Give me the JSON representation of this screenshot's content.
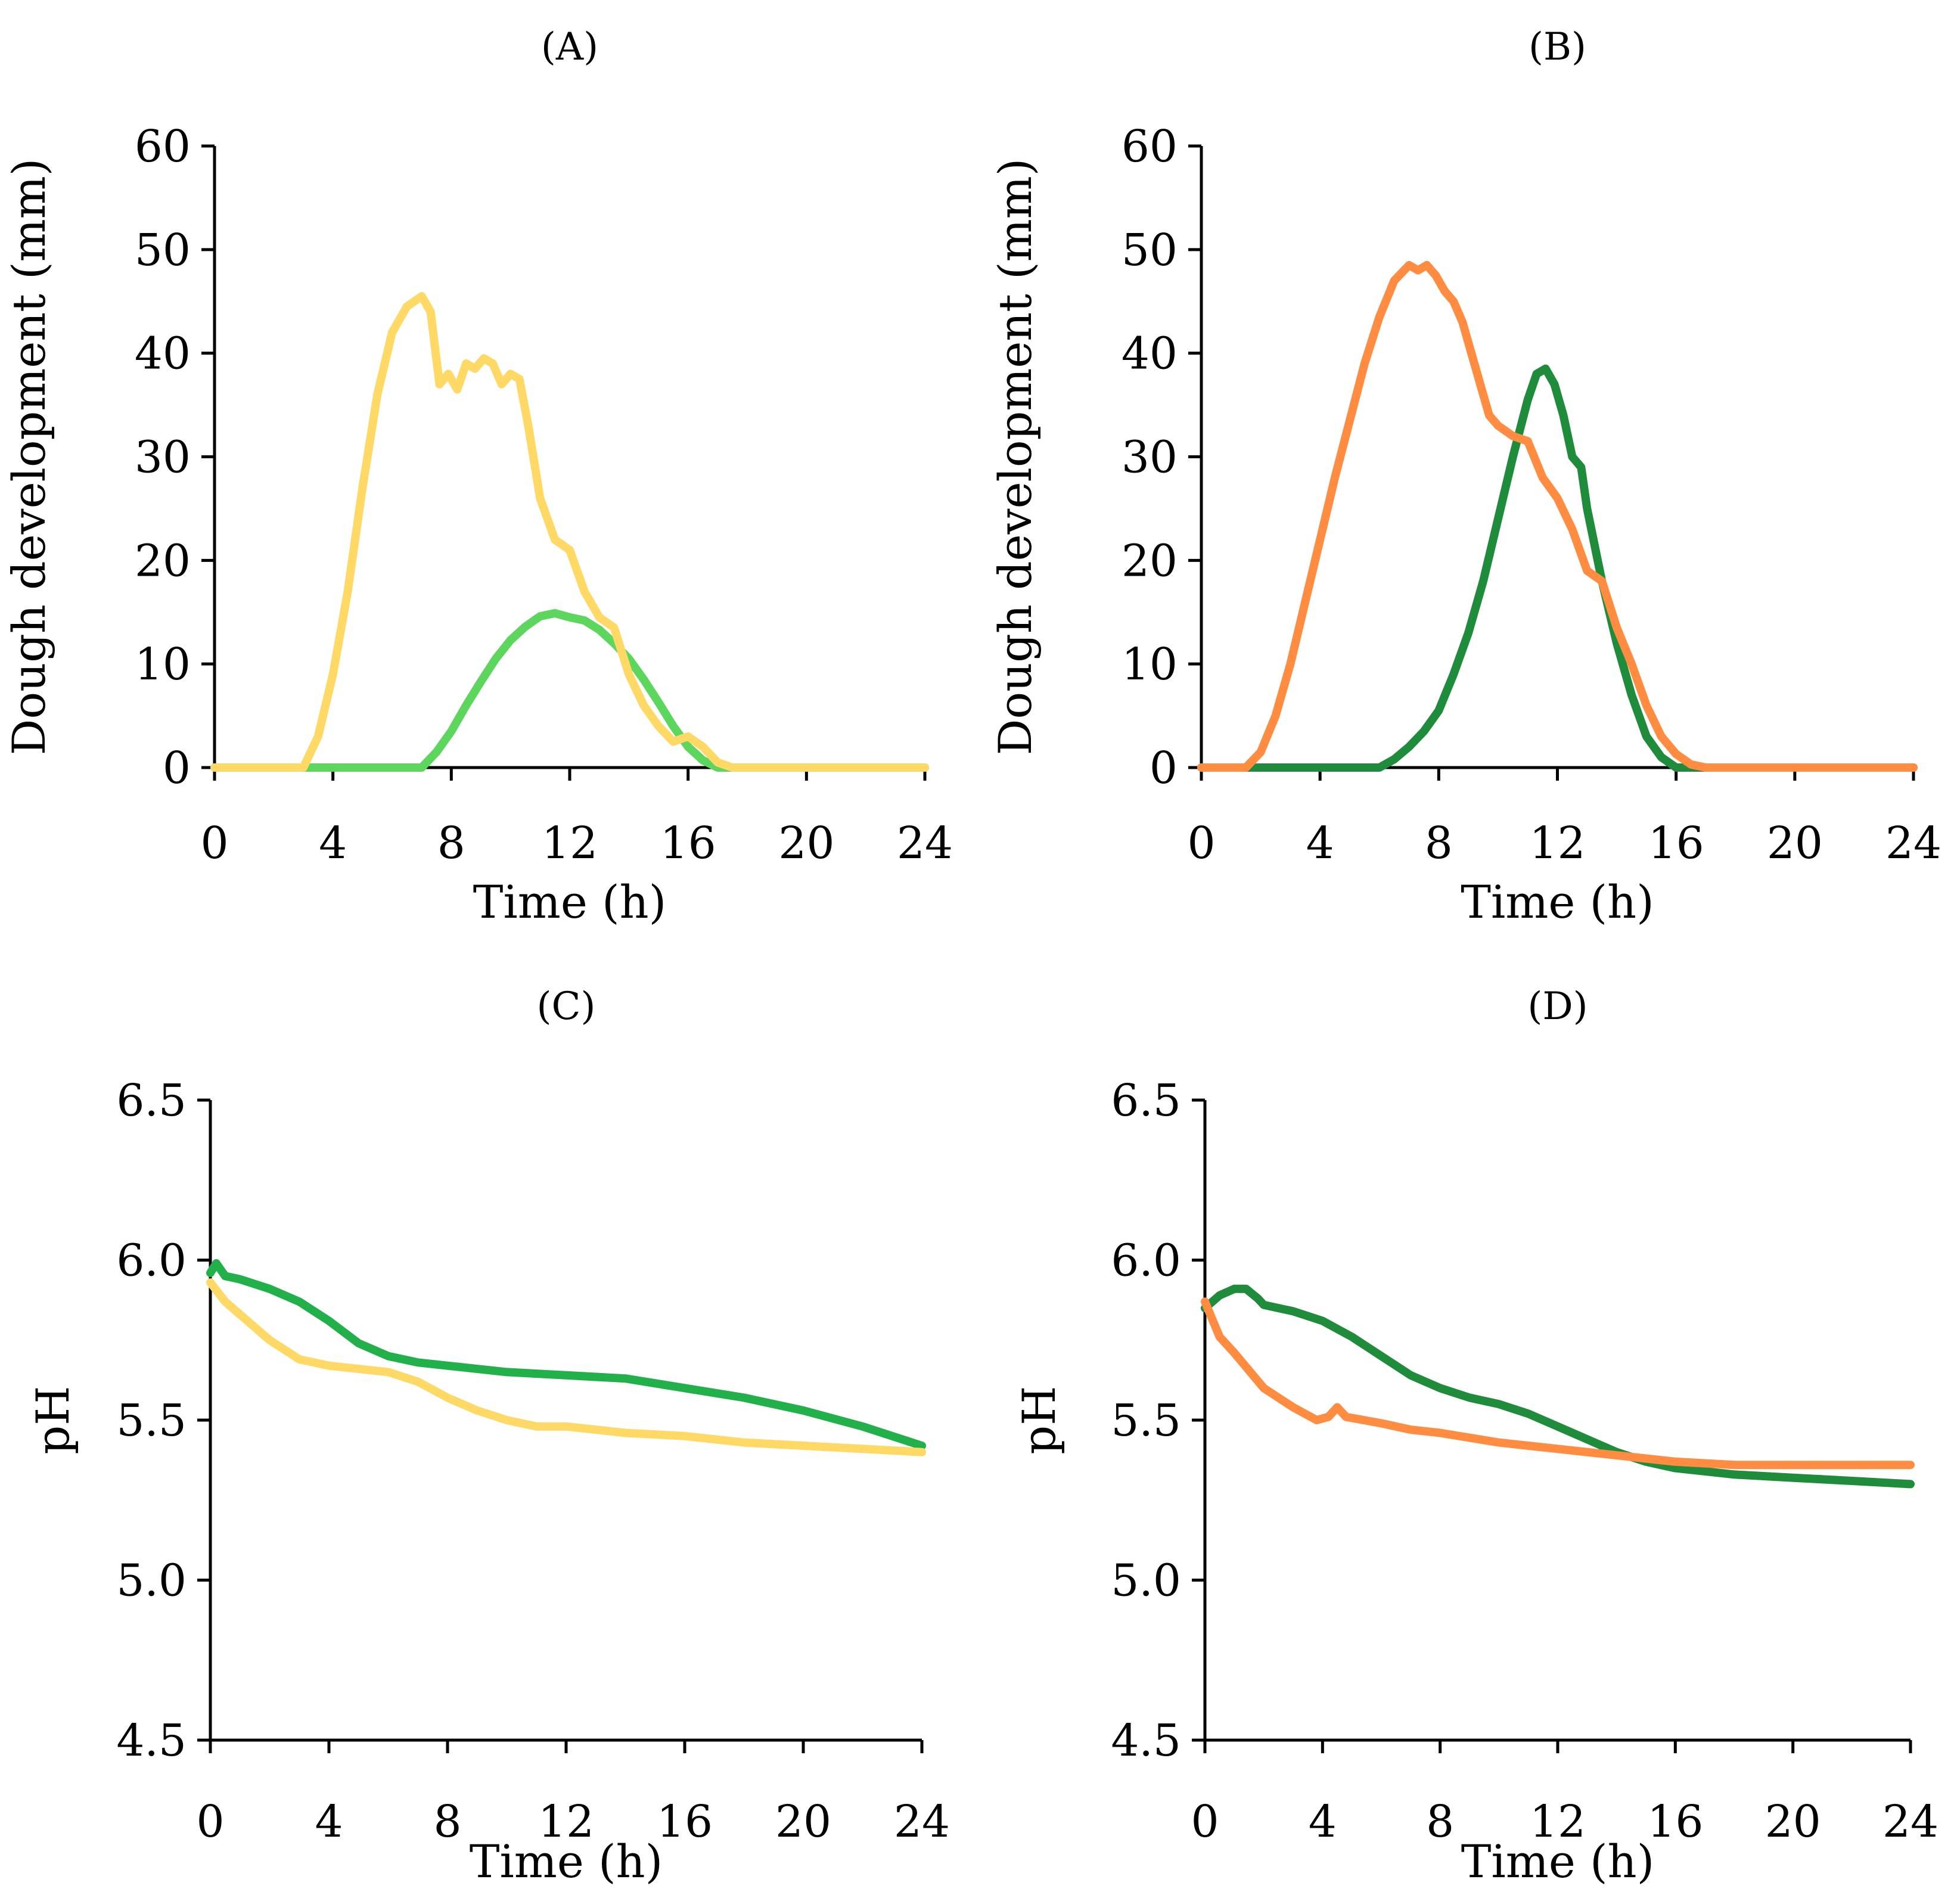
{
  "chart_data": [
    {
      "panel": "A",
      "type": "line",
      "title": "(A)",
      "xlabel": "Time (h)",
      "ylabel": "Dough development (mm)",
      "xlim": [
        0,
        24
      ],
      "ylim": [
        0,
        60
      ],
      "xticks": [
        "0",
        "4",
        "8",
        "12",
        "16",
        "20",
        "24"
      ],
      "yticks": [
        "0",
        "10",
        "20",
        "30",
        "40",
        "50",
        "60"
      ],
      "series": [
        {
          "name": "light-green",
          "color": "#5cd65c",
          "x": [
            0,
            7,
            7.5,
            8,
            8.5,
            9,
            9.5,
            10,
            10.5,
            11,
            11.5,
            12,
            12.5,
            13,
            13.5,
            14,
            14.5,
            15,
            15.5,
            16,
            16.5,
            17,
            24
          ],
          "y": [
            0,
            0,
            1.5,
            3.5,
            6,
            8.3,
            10.5,
            12.3,
            13.6,
            14.6,
            14.9,
            14.5,
            14.2,
            13.3,
            12,
            10.5,
            8.5,
            6.3,
            4,
            2,
            0.7,
            0,
            0
          ]
        },
        {
          "name": "yellow",
          "color": "#ffd966",
          "x": [
            0,
            3,
            3.5,
            4,
            4.5,
            5,
            5.5,
            6,
            6.5,
            7,
            7.3,
            7.6,
            7.9,
            8.2,
            8.5,
            8.8,
            9.1,
            9.4,
            9.7,
            10,
            10.3,
            10.6,
            11,
            11.5,
            12,
            12.5,
            13,
            13.5,
            14,
            14.5,
            15,
            15.5,
            16,
            16.5,
            17,
            17.5,
            24
          ],
          "y": [
            0,
            0,
            3,
            9,
            17,
            27,
            36,
            42,
            44.5,
            45.5,
            44,
            37,
            38,
            36.5,
            39,
            38.5,
            39.5,
            39,
            37,
            38,
            37.5,
            33,
            26,
            22,
            21,
            17,
            14.5,
            13.5,
            9,
            6,
            4,
            2.5,
            3,
            2,
            0.5,
            0,
            0
          ]
        }
      ]
    },
    {
      "panel": "B",
      "type": "line",
      "title": "(B)",
      "xlabel": "Time (h)",
      "ylabel": "Dough development (mm)",
      "xlim": [
        0,
        24
      ],
      "ylim": [
        0,
        60
      ],
      "xticks": [
        "0",
        "4",
        "8",
        "12",
        "16",
        "20",
        "24"
      ],
      "yticks": [
        "0",
        "10",
        "20",
        "30",
        "40",
        "50",
        "60"
      ],
      "series": [
        {
          "name": "dark-green",
          "color": "#1e8c3a",
          "x": [
            0,
            6,
            6.5,
            7,
            7.5,
            8,
            8.5,
            9,
            9.5,
            10,
            10.5,
            11,
            11.3,
            11.6,
            11.9,
            12.2,
            12.5,
            12.8,
            13,
            13.5,
            14,
            14.5,
            15,
            15.5,
            16,
            16.5,
            24
          ],
          "y": [
            0,
            0,
            0.8,
            2,
            3.5,
            5.5,
            9,
            13,
            18,
            24,
            30,
            35.5,
            38,
            38.5,
            37,
            34,
            30,
            29,
            25,
            18,
            12,
            7,
            3,
            1,
            0,
            0,
            0
          ]
        },
        {
          "name": "orange",
          "color": "#ff8c40",
          "x": [
            0,
            1.5,
            2,
            2.5,
            3,
            3.5,
            4,
            4.5,
            5,
            5.5,
            6,
            6.5,
            7,
            7.3,
            7.6,
            7.9,
            8.2,
            8.5,
            8.8,
            9.1,
            9.4,
            9.7,
            10,
            10.5,
            11,
            11.5,
            12,
            12.5,
            13,
            13.5,
            14,
            14.5,
            15,
            15.5,
            16,
            16.5,
            17,
            24
          ],
          "y": [
            0,
            0,
            1.5,
            5,
            10,
            16,
            22,
            28,
            33.5,
            39,
            43.5,
            47,
            48.5,
            48,
            48.5,
            47.5,
            46,
            45,
            43,
            40,
            37,
            34,
            33,
            32,
            31.5,
            28,
            26,
            23,
            19,
            18,
            13.5,
            10,
            6,
            3,
            1.3,
            0.3,
            0,
            0
          ]
        }
      ]
    },
    {
      "panel": "C",
      "type": "line",
      "title": "(C)",
      "xlabel": "Time (h)",
      "ylabel": "pH",
      "xlim": [
        0,
        24
      ],
      "ylim": [
        4.5,
        6.5
      ],
      "xticks": [
        "0",
        "4",
        "8",
        "12",
        "16",
        "20",
        "24"
      ],
      "yticks": [
        "4.5",
        "5.0",
        "5.5",
        "6.0",
        "6.5"
      ],
      "series": [
        {
          "name": "green",
          "color": "#22b04b",
          "x": [
            0,
            0.2,
            0.5,
            1,
            2,
            3,
            4,
            5,
            6,
            7,
            8,
            10,
            12,
            14,
            16,
            18,
            20,
            22,
            24
          ],
          "y": [
            5.96,
            5.99,
            5.95,
            5.94,
            5.91,
            5.87,
            5.81,
            5.74,
            5.7,
            5.68,
            5.67,
            5.65,
            5.64,
            5.63,
            5.6,
            5.57,
            5.53,
            5.48,
            5.42
          ]
        },
        {
          "name": "yellow",
          "color": "#ffd966",
          "x": [
            0,
            0.5,
            1,
            2,
            3,
            4,
            5,
            6,
            7,
            8,
            9,
            10,
            11,
            12,
            14,
            16,
            18,
            20,
            22,
            24
          ],
          "y": [
            5.93,
            5.87,
            5.83,
            5.75,
            5.69,
            5.67,
            5.66,
            5.65,
            5.62,
            5.57,
            5.53,
            5.5,
            5.48,
            5.48,
            5.46,
            5.45,
            5.43,
            5.42,
            5.41,
            5.4
          ]
        }
      ]
    },
    {
      "panel": "D",
      "type": "line",
      "title": "(D)",
      "xlabel": "Time (h)",
      "ylabel": "pH",
      "xlim": [
        0,
        24
      ],
      "ylim": [
        4.5,
        6.5
      ],
      "xticks": [
        "0",
        "4",
        "8",
        "12",
        "16",
        "20",
        "24"
      ],
      "yticks": [
        "4.5",
        "5.0",
        "5.5",
        "6.0",
        "6.5"
      ],
      "series": [
        {
          "name": "dark-green",
          "color": "#1e8c3a",
          "x": [
            0,
            0.5,
            1,
            1.4,
            1.8,
            2,
            3,
            4,
            5,
            6,
            7,
            8,
            9,
            10,
            11,
            12,
            13,
            14,
            15,
            16,
            17,
            18,
            20,
            22,
            24
          ],
          "y": [
            5.85,
            5.89,
            5.91,
            5.91,
            5.88,
            5.86,
            5.84,
            5.81,
            5.76,
            5.7,
            5.64,
            5.6,
            5.57,
            5.55,
            5.52,
            5.48,
            5.44,
            5.4,
            5.37,
            5.35,
            5.34,
            5.33,
            5.32,
            5.31,
            5.3
          ]
        },
        {
          "name": "orange",
          "color": "#ff8c40",
          "x": [
            0,
            0.5,
            1,
            2,
            3,
            3.8,
            4.2,
            4.5,
            4.8,
            6,
            7,
            8,
            10,
            12,
            14,
            16,
            18,
            20,
            22,
            24
          ],
          "y": [
            5.87,
            5.76,
            5.71,
            5.6,
            5.54,
            5.5,
            5.51,
            5.54,
            5.51,
            5.49,
            5.47,
            5.46,
            5.43,
            5.41,
            5.39,
            5.37,
            5.36,
            5.36,
            5.36,
            5.36
          ]
        }
      ]
    }
  ]
}
